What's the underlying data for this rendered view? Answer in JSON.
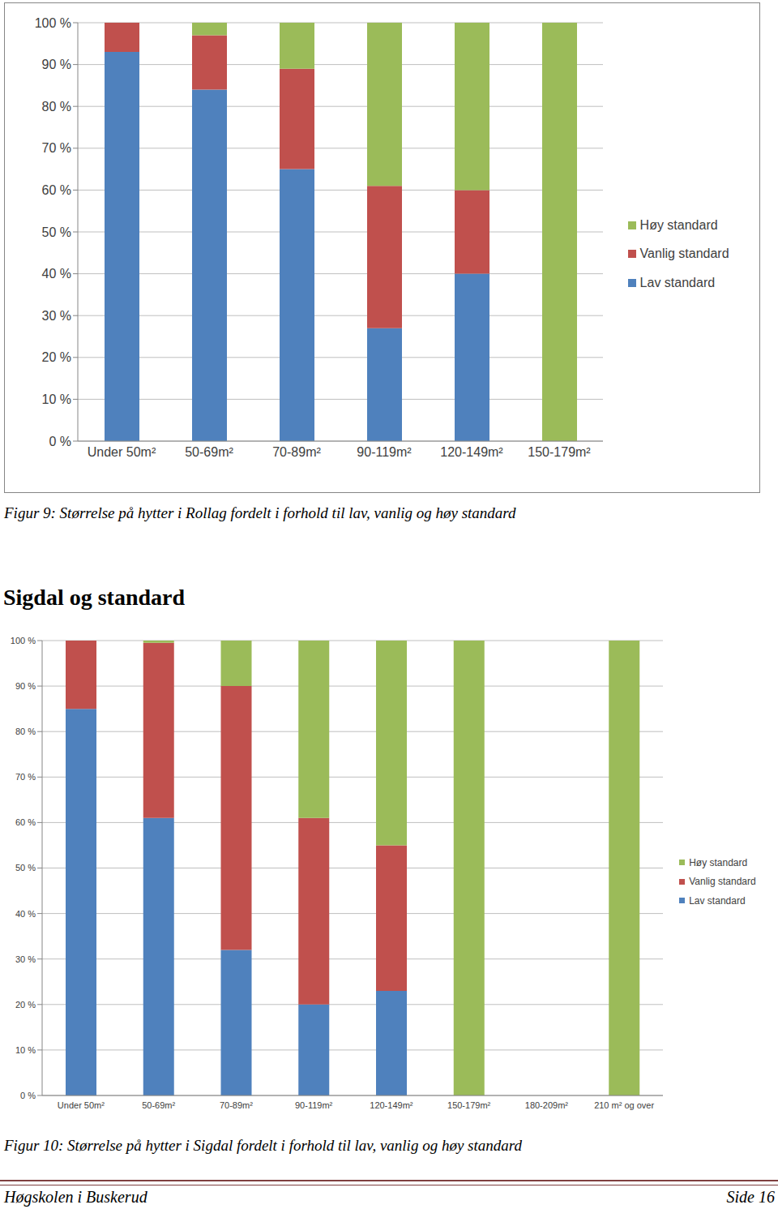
{
  "chart_data": [
    {
      "type": "bar",
      "stacked": true,
      "grid": true,
      "legend": "right",
      "caption": "Figur 9: Størrelse på hytter i Rollag fordelt i forhold til lav, vanlig og høy standard",
      "categories": [
        "Under 50m²",
        "50-69m²",
        "70-89m²",
        "90-119m²",
        "120-149m²",
        "150-179m²"
      ],
      "series": [
        {
          "name": "Lav standard",
          "color": "#4f81bd",
          "values": [
            93,
            84,
            65,
            27,
            40,
            0
          ]
        },
        {
          "name": "Vanlig standard",
          "color": "#c0504d",
          "values": [
            7,
            13,
            24,
            34,
            20,
            0
          ]
        },
        {
          "name": "Høy standard",
          "color": "#9bbb59",
          "values": [
            0,
            3,
            11,
            39,
            40,
            100
          ]
        }
      ],
      "ylim": [
        0,
        100
      ],
      "yticks": [
        {
          "value": 0,
          "label": "0 %"
        },
        {
          "value": 10,
          "label": "10 %"
        },
        {
          "value": 20,
          "label": "20 %"
        },
        {
          "value": 30,
          "label": "30 %"
        },
        {
          "value": 40,
          "label": "40 %"
        },
        {
          "value": 50,
          "label": "50 %"
        },
        {
          "value": 60,
          "label": "60 %"
        },
        {
          "value": 70,
          "label": "70 %"
        },
        {
          "value": 80,
          "label": "80 %"
        },
        {
          "value": 90,
          "label": "90 %"
        },
        {
          "value": 100,
          "label": "100 %"
        }
      ]
    },
    {
      "type": "bar",
      "stacked": true,
      "grid": true,
      "legend": "right",
      "heading": "Sigdal og standard",
      "caption": "Figur 10: Størrelse på hytter i Sigdal fordelt i forhold til lav, vanlig og høy standard",
      "categories": [
        "Under 50m²",
        "50-69m²",
        "70-89m²",
        "90-119m²",
        "120-149m²",
        "150-179m²",
        "180-209m²",
        "210 m² og over"
      ],
      "series": [
        {
          "name": "Lav standard",
          "color": "#4f81bd",
          "values": [
            85,
            61,
            32,
            20,
            23,
            0,
            null,
            0
          ]
        },
        {
          "name": "Vanlig standard",
          "color": "#c0504d",
          "values": [
            15,
            38.5,
            58,
            41,
            32,
            0,
            null,
            0
          ]
        },
        {
          "name": "Høy standard",
          "color": "#9bbb59",
          "values": [
            0,
            0.5,
            10,
            39,
            45,
            100,
            null,
            100
          ]
        }
      ],
      "ylim": [
        0,
        100
      ],
      "yticks": [
        {
          "value": 0,
          "label": "0 %"
        },
        {
          "value": 10,
          "label": "10 %"
        },
        {
          "value": 20,
          "label": "20 %"
        },
        {
          "value": 30,
          "label": "30 %"
        },
        {
          "value": 40,
          "label": "40 %"
        },
        {
          "value": 50,
          "label": "50 %"
        },
        {
          "value": 60,
          "label": "60 %"
        },
        {
          "value": 70,
          "label": "70 %"
        },
        {
          "value": 80,
          "label": "80 %"
        },
        {
          "value": 90,
          "label": "90 %"
        },
        {
          "value": 100,
          "label": "100 %"
        }
      ]
    }
  ],
  "footer": {
    "left": "Høgskolen i Buskerud",
    "right": "Side 16"
  }
}
